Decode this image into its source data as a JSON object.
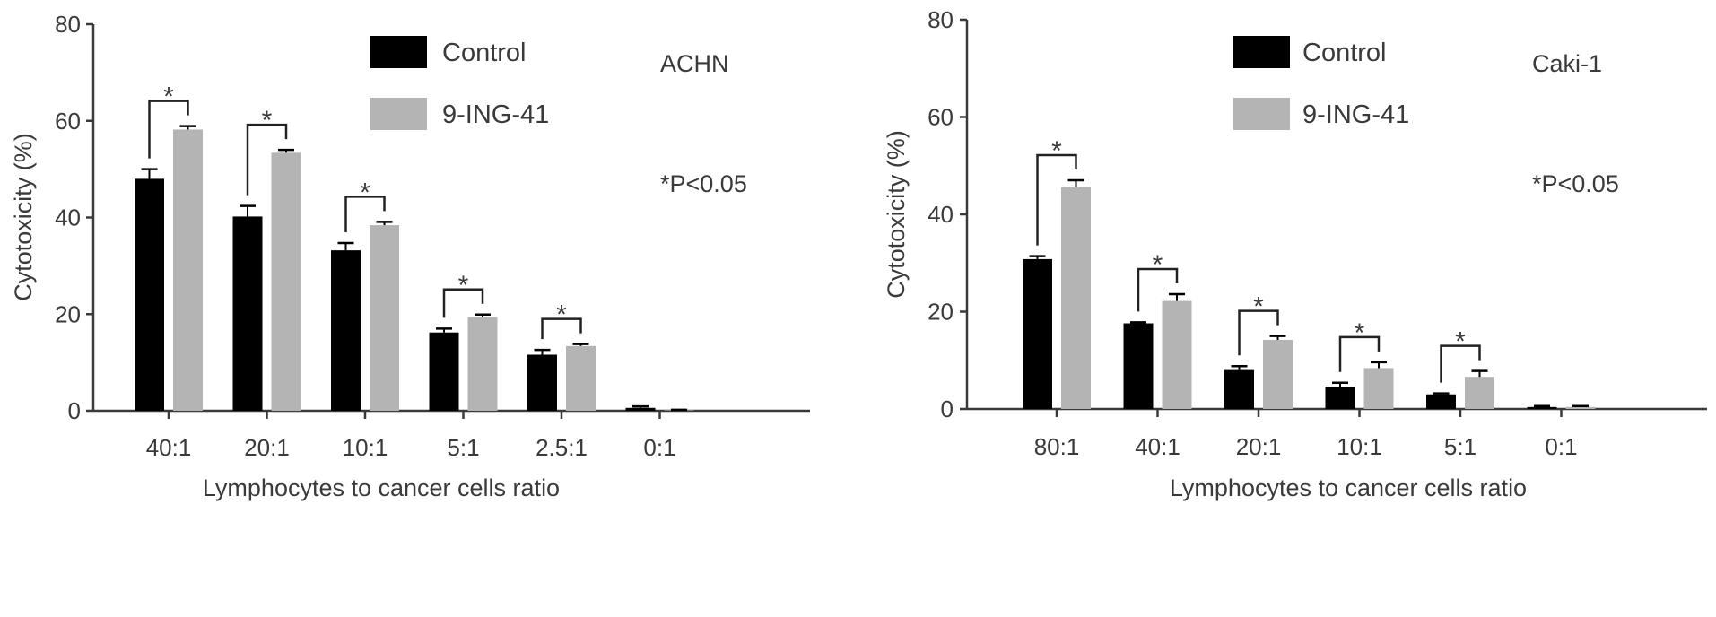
{
  "chart_data": [
    {
      "type": "bar",
      "title": "",
      "xlabel": "Lymphocytes to cancer cells ratio",
      "ylabel": "Cytotoxicity (%)",
      "ylim": [
        0,
        80
      ],
      "yticks": [
        "0",
        "20",
        "40",
        "60",
        "80"
      ],
      "ytick_values": [
        0,
        20,
        40,
        60,
        80
      ],
      "categories": [
        "40:1",
        "20:1",
        "10:1",
        "5:1",
        "2.5:1",
        "0:1"
      ],
      "series": [
        {
          "name": "Control",
          "color": "#000000",
          "values": [
            48,
            40.2,
            33.2,
            16.2,
            11.6,
            0.6
          ],
          "errors": [
            2.0,
            2.2,
            1.5,
            0.8,
            1.0,
            0.3
          ]
        },
        {
          "name": "9-ING-41",
          "color": "#b4b4b4",
          "values": [
            58.2,
            53.4,
            38.4,
            19.4,
            13.4,
            0.1
          ],
          "errors": [
            0.7,
            0.6,
            0.7,
            0.5,
            0.4,
            0.1
          ]
        }
      ],
      "significance": [
        {
          "category": "40:1",
          "label": "*"
        },
        {
          "category": "20:1",
          "label": "*"
        },
        {
          "category": "10:1",
          "label": "*"
        },
        {
          "category": "5:1",
          "label": "*"
        },
        {
          "category": "2.5:1",
          "label": "*"
        }
      ],
      "annotations": [
        "ACHN",
        "*P<0.05"
      ],
      "legend_position": "top-right",
      "grid": false
    },
    {
      "type": "bar",
      "title": "",
      "xlabel": "Lymphocytes to cancer cells ratio",
      "ylabel": "Cytotoxicity (%)",
      "ylim": [
        0,
        80
      ],
      "yticks": [
        "0",
        "20",
        "40",
        "60",
        "80"
      ],
      "ytick_values": [
        0,
        20,
        40,
        60,
        80
      ],
      "categories": [
        "80:1",
        "40:1",
        "20:1",
        "10:1",
        "5:1",
        "0:1"
      ],
      "series": [
        {
          "name": "Control",
          "color": "#000000",
          "values": [
            30.8,
            17.6,
            8,
            4.6,
            3,
            0.4
          ],
          "errors": [
            0.6,
            0.2,
            0.8,
            0.8,
            0.2,
            0.2
          ]
        },
        {
          "name": "9-ING-41",
          "color": "#b4b4b4",
          "values": [
            45.6,
            22.2,
            14.2,
            8.4,
            6.6,
            0.4
          ],
          "errors": [
            1.4,
            1.4,
            0.8,
            1.2,
            1.2,
            0.2
          ]
        }
      ],
      "significance": [
        {
          "category": "80:1",
          "label": "*"
        },
        {
          "category": "40:1",
          "label": "*"
        },
        {
          "category": "20:1",
          "label": "*"
        },
        {
          "category": "10:1",
          "label": "*"
        },
        {
          "category": "5:1",
          "label": "*"
        }
      ],
      "annotations": [
        "Caki-1",
        "*P<0.05"
      ],
      "legend_position": "top-right",
      "grid": false
    }
  ]
}
